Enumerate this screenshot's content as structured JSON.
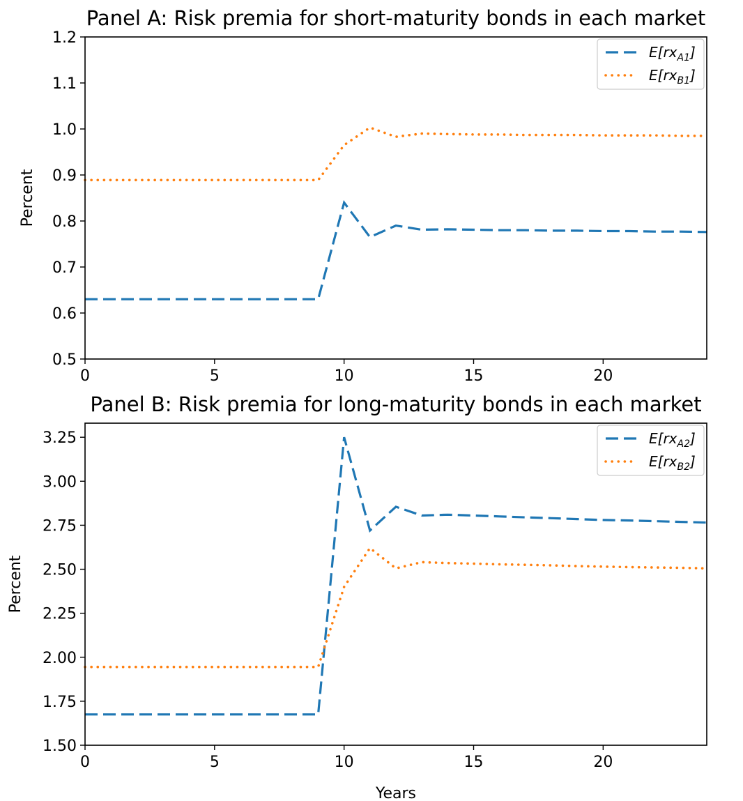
{
  "chart_data": [
    {
      "type": "line",
      "title": "Panel A: Risk premia for short-maturity bonds in each market",
      "xlabel": "",
      "ylabel": "Percent",
      "xlim": [
        0,
        24
      ],
      "ylim": [
        0.5,
        1.2
      ],
      "xticks": [
        0,
        5,
        10,
        15,
        20
      ],
      "xtick_labels": [
        "0",
        "5",
        "10",
        "15",
        "20"
      ],
      "yticks": [
        0.5,
        0.6,
        0.7,
        0.8,
        0.9,
        1.0,
        1.1,
        1.2
      ],
      "ytick_labels": [
        "0.5",
        "0.6",
        "0.7",
        "0.8",
        "0.9",
        "1.0",
        "1.1",
        "1.2"
      ],
      "legend_position": "top-right",
      "grid": false,
      "series": [
        {
          "name_main": "E[rx",
          "name_sub": "A1",
          "name_end": "]",
          "color": "#1f77b4",
          "style": "dashed",
          "x": [
            0,
            1,
            2,
            3,
            4,
            5,
            6,
            7,
            8,
            9,
            10,
            11,
            12,
            13,
            14,
            15,
            16,
            17,
            18,
            19,
            20,
            21,
            22,
            23,
            24
          ],
          "y": [
            0.63,
            0.63,
            0.63,
            0.63,
            0.63,
            0.63,
            0.63,
            0.63,
            0.63,
            0.63,
            0.84,
            0.765,
            0.79,
            0.781,
            0.782,
            0.781,
            0.78,
            0.78,
            0.779,
            0.779,
            0.778,
            0.778,
            0.777,
            0.777,
            0.776
          ]
        },
        {
          "name_main": "E[rx",
          "name_sub": "B1",
          "name_end": "]",
          "color": "#ff7f0e",
          "style": "dotted",
          "x": [
            0,
            1,
            2,
            3,
            4,
            5,
            6,
            7,
            8,
            9,
            10,
            11,
            12,
            13,
            14,
            15,
            16,
            17,
            18,
            19,
            20,
            21,
            22,
            23,
            24
          ],
          "y": [
            0.889,
            0.889,
            0.889,
            0.889,
            0.889,
            0.889,
            0.889,
            0.889,
            0.889,
            0.889,
            0.965,
            1.003,
            0.983,
            0.99,
            0.989,
            0.988,
            0.988,
            0.987,
            0.987,
            0.987,
            0.986,
            0.986,
            0.986,
            0.985,
            0.985
          ]
        }
      ]
    },
    {
      "type": "line",
      "title": "Panel B: Risk premia for long-maturity bonds in each market",
      "xlabel": "Years",
      "ylabel": "Percent",
      "xlim": [
        0,
        24
      ],
      "ylim": [
        1.5,
        3.33
      ],
      "xticks": [
        0,
        5,
        10,
        15,
        20
      ],
      "xtick_labels": [
        "0",
        "5",
        "10",
        "15",
        "20"
      ],
      "yticks": [
        1.5,
        1.75,
        2.0,
        2.25,
        2.5,
        2.75,
        3.0,
        3.25
      ],
      "ytick_labels": [
        "1.50",
        "1.75",
        "2.00",
        "2.25",
        "2.50",
        "2.75",
        "3.00",
        "3.25"
      ],
      "legend_position": "top-right",
      "grid": false,
      "series": [
        {
          "name_main": "E[rx",
          "name_sub": "A2",
          "name_end": "]",
          "color": "#1f77b4",
          "style": "dashed",
          "x": [
            0,
            1,
            2,
            3,
            4,
            5,
            6,
            7,
            8,
            9,
            10,
            11,
            12,
            13,
            14,
            15,
            16,
            17,
            18,
            19,
            20,
            21,
            22,
            23,
            24
          ],
          "y": [
            1.675,
            1.675,
            1.675,
            1.675,
            1.675,
            1.675,
            1.675,
            1.675,
            1.675,
            1.675,
            3.25,
            2.72,
            2.855,
            2.805,
            2.81,
            2.805,
            2.8,
            2.795,
            2.79,
            2.785,
            2.78,
            2.777,
            2.773,
            2.769,
            2.765
          ]
        },
        {
          "name_main": "E[rx",
          "name_sub": "B2",
          "name_end": "]",
          "color": "#ff7f0e",
          "style": "dotted",
          "x": [
            0,
            1,
            2,
            3,
            4,
            5,
            6,
            7,
            8,
            9,
            10,
            11,
            12,
            13,
            14,
            15,
            16,
            17,
            18,
            19,
            20,
            21,
            22,
            23,
            24
          ],
          "y": [
            1.945,
            1.945,
            1.945,
            1.945,
            1.945,
            1.945,
            1.945,
            1.945,
            1.945,
            1.945,
            2.4,
            2.62,
            2.505,
            2.54,
            2.535,
            2.532,
            2.528,
            2.525,
            2.522,
            2.518,
            2.515,
            2.512,
            2.51,
            2.508,
            2.505
          ]
        }
      ]
    }
  ]
}
